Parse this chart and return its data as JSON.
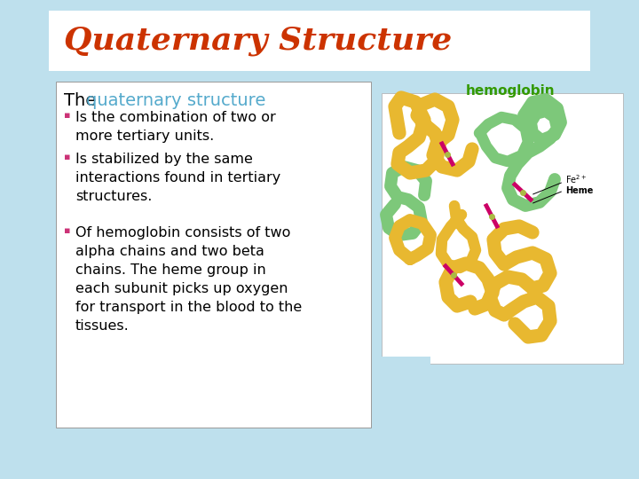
{
  "title": "Quaternary Structure",
  "title_color": "#CC3300",
  "title_fontsize": 26,
  "background_color": "#BEE0ED",
  "title_box_color": "#FFFFFF",
  "content_box_color": "#FFFFFF",
  "heading_text": "The ",
  "heading_highlight": "quaternary structure",
  "heading_highlight_color": "#55AACC",
  "heading_color": "#000000",
  "heading_fontsize": 14,
  "bullet_color": "#CC3377",
  "bullet_text_color": "#000000",
  "bullet_fontsize": 11.5,
  "bullets": [
    "Is the combination of two or\nmore tertiary units.",
    "Is stabilized by the same\ninteractions found in tertiary\nstructures.",
    "Of hemoglobin consists of two\nalpha chains and two beta\nchains. The heme group in\neach subunit picks up oxygen\nfor transport in the blood to the\ntissues."
  ],
  "image_label": "hemoglobin",
  "image_label_color": "#339900",
  "image_label_fontsize": 11,
  "fig_width": 7.2,
  "fig_height": 5.4,
  "dpi": 100
}
